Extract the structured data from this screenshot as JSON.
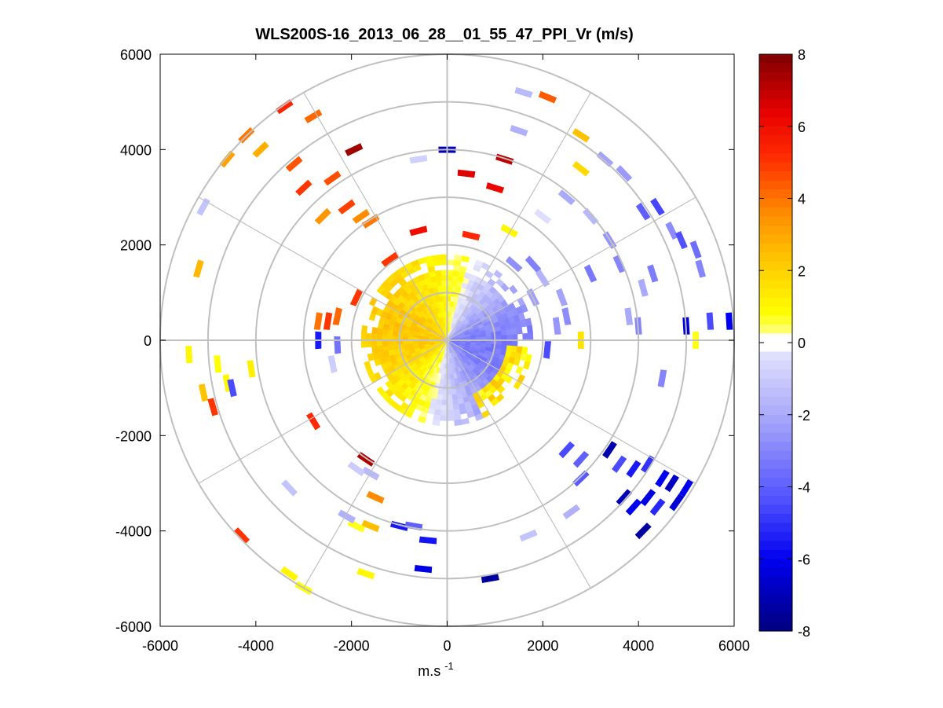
{
  "chart_data": {
    "type": "heatmap",
    "subtype": "polar-ppi-scan",
    "title": "WLS200S-16_2013_06_28__01_55_47_PPI_Vr (m/s)",
    "xlabel_base": "m.s",
    "xlabel_exp": "-1",
    "ylabel": "",
    "xlim": [
      -6000,
      6000
    ],
    "ylim": [
      -6000,
      6000
    ],
    "xticks": [
      -6000,
      -4000,
      -2000,
      0,
      2000,
      4000,
      6000
    ],
    "yticks": [
      6000,
      4000,
      2000,
      0,
      -2000,
      -4000,
      -6000
    ],
    "range_rings": [
      1000,
      2000,
      3000,
      4000,
      5000,
      6000
    ],
    "radial_spokes_deg": [
      0,
      30,
      60,
      90,
      120,
      150,
      180,
      210,
      240,
      270,
      300,
      330
    ],
    "grid": true,
    "colorbar": {
      "label": "Vr (m/s)",
      "min": -8,
      "max": 8,
      "ticks": [
        8,
        6,
        4,
        2,
        0,
        -2,
        -4,
        -6,
        -8
      ],
      "colors": {
        "neg_dark": "#00007f",
        "neg_mid": "#0000ff",
        "neg_light": "#dcdcff",
        "zero": "#ffffff",
        "pos_yellow": "#ffff00",
        "pos_orange": "#ff9900",
        "pos_red": "#ff0000",
        "pos_dark": "#7f0000"
      }
    },
    "near_field": {
      "max_range_m": 1800,
      "pattern": "southwest-positive / northeast-negative radial velocity"
    },
    "far_gates": [
      {
        "x": -5200,
        "y": 1500,
        "v": 2.6
      },
      {
        "x": -5100,
        "y": 2800,
        "v": -1.2
      },
      {
        "x": -4600,
        "y": 3800,
        "v": 3.1
      },
      {
        "x": -4200,
        "y": 4300,
        "v": 3.9
      },
      {
        "x": -3900,
        "y": 4000,
        "v": 2.8
      },
      {
        "x": -3400,
        "y": 4900,
        "v": 5.3
      },
      {
        "x": -3200,
        "y": 3700,
        "v": 4.5
      },
      {
        "x": -3000,
        "y": 3200,
        "v": 5.0
      },
      {
        "x": -2800,
        "y": 4700,
        "v": 4.2
      },
      {
        "x": -2600,
        "y": 2600,
        "v": 3.4
      },
      {
        "x": -2400,
        "y": 3400,
        "v": 4.6
      },
      {
        "x": -2100,
        "y": 2800,
        "v": 4.8
      },
      {
        "x": -1950,
        "y": 4000,
        "v": 7.5
      },
      {
        "x": -1800,
        "y": 2600,
        "v": 3.6
      },
      {
        "x": -1600,
        "y": 2500,
        "v": 3.9
      },
      {
        "x": -1200,
        "y": 1700,
        "v": 5.0
      },
      {
        "x": -600,
        "y": 2300,
        "v": 6.0
      },
      {
        "x": -600,
        "y": 3800,
        "v": -0.8
      },
      {
        "x": 0,
        "y": 4000,
        "v": -7.0
      },
      {
        "x": 400,
        "y": 3500,
        "v": 6.5
      },
      {
        "x": 1000,
        "y": 3200,
        "v": 6.2
      },
      {
        "x": 1200,
        "y": 3800,
        "v": 7.0
      },
      {
        "x": 500,
        "y": 2200,
        "v": 5.2
      },
      {
        "x": 1300,
        "y": 2300,
        "v": 1.0
      },
      {
        "x": 1500,
        "y": 4400,
        "v": -1.8
      },
      {
        "x": 1600,
        "y": 5200,
        "v": -1.5
      },
      {
        "x": 2000,
        "y": 2600,
        "v": -0.4
      },
      {
        "x": 2100,
        "y": 5100,
        "v": 4.4
      },
      {
        "x": 2500,
        "y": 3000,
        "v": -2.0
      },
      {
        "x": 2800,
        "y": 4300,
        "v": 2.4
      },
      {
        "x": 2800,
        "y": 3600,
        "v": 1.8
      },
      {
        "x": 3000,
        "y": 2600,
        "v": -1.6
      },
      {
        "x": 3300,
        "y": 3800,
        "v": -2.2
      },
      {
        "x": 3400,
        "y": 2100,
        "v": -2.6
      },
      {
        "x": 3700,
        "y": 3500,
        "v": -2.4
      },
      {
        "x": 4100,
        "y": 2700,
        "v": -4.0
      },
      {
        "x": 4400,
        "y": 2800,
        "v": -4.6
      },
      {
        "x": 4700,
        "y": 2300,
        "v": -2.8
      },
      {
        "x": 4900,
        "y": 2100,
        "v": -4.4
      },
      {
        "x": 5200,
        "y": 1900,
        "v": -3.6
      },
      {
        "x": 5300,
        "y": 1500,
        "v": -3.0
      },
      {
        "x": 3000,
        "y": 1400,
        "v": -3.3
      },
      {
        "x": 3600,
        "y": 1600,
        "v": -3.0
      },
      {
        "x": 4300,
        "y": 1400,
        "v": -3.2
      },
      {
        "x": 4100,
        "y": 1100,
        "v": -2.0
      },
      {
        "x": 3800,
        "y": 500,
        "v": -2.0
      },
      {
        "x": 4000,
        "y": 300,
        "v": -3.0
      },
      {
        "x": 5000,
        "y": 300,
        "v": -6.6
      },
      {
        "x": 5500,
        "y": 400,
        "v": -4.5
      },
      {
        "x": 5900,
        "y": 400,
        "v": -6.0
      },
      {
        "x": 5200,
        "y": 0,
        "v": 0.7
      },
      {
        "x": 4500,
        "y": -800,
        "v": -3.0
      },
      {
        "x": 2800,
        "y": 0,
        "v": 1.5
      },
      {
        "x": 2500,
        "y": 500,
        "v": -2.8
      },
      {
        "x": 2300,
        "y": 300,
        "v": -2.5
      },
      {
        "x": 2100,
        "y": -200,
        "v": -4.5
      },
      {
        "x": 1800,
        "y": 900,
        "v": -2.3
      },
      {
        "x": 1400,
        "y": 1600,
        "v": -2.7
      },
      {
        "x": 1800,
        "y": 1600,
        "v": -3.1
      },
      {
        "x": 2000,
        "y": 1300,
        "v": -1.7
      },
      {
        "x": 2400,
        "y": 900,
        "v": -2.2
      },
      {
        "x": 3400,
        "y": -2300,
        "v": -7.2
      },
      {
        "x": 3600,
        "y": -2600,
        "v": -4.5
      },
      {
        "x": 3900,
        "y": -2700,
        "v": -5.5
      },
      {
        "x": 4200,
        "y": -2600,
        "v": -5.0
      },
      {
        "x": 4500,
        "y": -2900,
        "v": -6.0
      },
      {
        "x": 4700,
        "y": -3000,
        "v": -6.8
      },
      {
        "x": 3700,
        "y": -3300,
        "v": -7.0
      },
      {
        "x": 3900,
        "y": -3500,
        "v": -6.0
      },
      {
        "x": 4200,
        "y": -3300,
        "v": -6.2
      },
      {
        "x": 4400,
        "y": -3500,
        "v": -5.2
      },
      {
        "x": 4800,
        "y": -3400,
        "v": -6.5
      },
      {
        "x": 5000,
        "y": -3100,
        "v": -6.0
      },
      {
        "x": 4100,
        "y": -4000,
        "v": -7.4
      },
      {
        "x": 2800,
        "y": -2500,
        "v": -4.0
      },
      {
        "x": 2500,
        "y": -2300,
        "v": -4.5
      },
      {
        "x": 2800,
        "y": -2900,
        "v": -4.2
      },
      {
        "x": 900,
        "y": -5000,
        "v": -7.5
      },
      {
        "x": 1700,
        "y": -4100,
        "v": -1.2
      },
      {
        "x": 2600,
        "y": -3600,
        "v": -1.8
      },
      {
        "x": -500,
        "y": -4800,
        "v": -6.2
      },
      {
        "x": -400,
        "y": -4200,
        "v": -5.6
      },
      {
        "x": -1000,
        "y": -3900,
        "v": -5.5
      },
      {
        "x": -700,
        "y": -3900,
        "v": -4.0
      },
      {
        "x": -1600,
        "y": -3900,
        "v": 2.5
      },
      {
        "x": -1900,
        "y": -3900,
        "v": 0.7
      },
      {
        "x": -2100,
        "y": -3700,
        "v": -1.8
      },
      {
        "x": -1500,
        "y": -3300,
        "v": 3.6
      },
      {
        "x": -1700,
        "y": -4900,
        "v": 1.0
      },
      {
        "x": -3300,
        "y": -4900,
        "v": 1.0
      },
      {
        "x": -3000,
        "y": -5200,
        "v": 0.8
      },
      {
        "x": -4300,
        "y": -4100,
        "v": 5.0
      },
      {
        "x": -3300,
        "y": -3100,
        "v": -1.2
      },
      {
        "x": -2800,
        "y": -1700,
        "v": 5.2
      },
      {
        "x": -1700,
        "y": -2500,
        "v": 7.3
      },
      {
        "x": -1600,
        "y": -2800,
        "v": -1.5
      },
      {
        "x": -1900,
        "y": -2700,
        "v": -1.0
      },
      {
        "x": -5400,
        "y": -300,
        "v": 1.0
      },
      {
        "x": -5100,
        "y": -1100,
        "v": 2.3
      },
      {
        "x": -4900,
        "y": -1400,
        "v": 5.0
      },
      {
        "x": -4800,
        "y": -500,
        "v": 0.8
      },
      {
        "x": -4600,
        "y": -900,
        "v": 1.0
      },
      {
        "x": -4500,
        "y": -1000,
        "v": -4.5
      },
      {
        "x": -4100,
        "y": -600,
        "v": 1.2
      },
      {
        "x": -2500,
        "y": 400,
        "v": 5.0
      },
      {
        "x": -2300,
        "y": 500,
        "v": 4.2
      },
      {
        "x": -2700,
        "y": 400,
        "v": 4.0
      },
      {
        "x": -2700,
        "y": 0,
        "v": -5.5
      },
      {
        "x": -2300,
        "y": -100,
        "v": -3.5
      },
      {
        "x": -2400,
        "y": -500,
        "v": -0.9
      },
      {
        "x": -1900,
        "y": 900,
        "v": 5.0
      }
    ]
  }
}
